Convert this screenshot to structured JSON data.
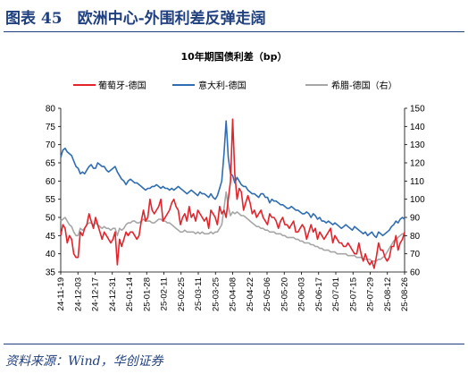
{
  "figure": {
    "title": "图表 45　欧洲中心-外围利差反弹走阔",
    "source": "资料来源：Wind，华创证券"
  },
  "colors": {
    "portugal": "#e3242b",
    "italy": "#2e6db4",
    "greece": "#a6a6a6",
    "frame": "#1f3f7f"
  },
  "chart_data": {
    "type": "line",
    "title": "10年期国债利差（bp）",
    "left_axis": {
      "ylim": [
        35,
        80
      ],
      "ticks": [
        35,
        40,
        45,
        50,
        55,
        60,
        65,
        70,
        75,
        80
      ]
    },
    "right_axis": {
      "ylim": [
        60,
        150
      ],
      "ticks": [
        60,
        70,
        80,
        90,
        100,
        110,
        120,
        130,
        140,
        150
      ]
    },
    "x_ticks": [
      "24-11-19",
      "24-12-03",
      "24-12-17",
      "24-12-31",
      "25-01-14",
      "25-01-28",
      "25-02-11",
      "25-02-25",
      "25-03-11",
      "25-03-25",
      "25-04-08",
      "25-04-22",
      "25-05-06",
      "25-05-20",
      "25-06-03",
      "25-06-17",
      "25-07-01",
      "25-07-15",
      "25-07-29",
      "25-08-12",
      "25-08-26"
    ],
    "legend_position": "top",
    "grid": false,
    "series": [
      {
        "name": "葡萄牙-德国",
        "axis": "left",
        "values": [
          45,
          48,
          47,
          43,
          45,
          44,
          40,
          39,
          39,
          46,
          45,
          47,
          48,
          51,
          49,
          47,
          50,
          48,
          46,
          44,
          46,
          45,
          44,
          43,
          44,
          46,
          37,
          44,
          42,
          44,
          46,
          45,
          46,
          46,
          45,
          44,
          45,
          49,
          52,
          49,
          50,
          55,
          52,
          51,
          52,
          53,
          55,
          49,
          50,
          51,
          52,
          54,
          55,
          53,
          52,
          48,
          50,
          51,
          49,
          53,
          50,
          51,
          49,
          52,
          51,
          50,
          49,
          50,
          47,
          52,
          51,
          50,
          48,
          53,
          51,
          52,
          50,
          55,
          60,
          77,
          62,
          55,
          58,
          57,
          52,
          54,
          56,
          54,
          51,
          52,
          50,
          51,
          52,
          50,
          49,
          48,
          51,
          50,
          50,
          49,
          47,
          49,
          50,
          48,
          48,
          47,
          48,
          49,
          46,
          46,
          47,
          48,
          47,
          44,
          46,
          48,
          46,
          47,
          44,
          46,
          45,
          44,
          45,
          46,
          47,
          43,
          45,
          44,
          43,
          43,
          42,
          42,
          43,
          42,
          41,
          40,
          40,
          43,
          40,
          38,
          40,
          38,
          37,
          38,
          36,
          39,
          43,
          41,
          41,
          39,
          38,
          39,
          42,
          42,
          45,
          41,
          43,
          44,
          46
        ]
      },
      {
        "name": "意大利-德国",
        "axis": "right",
        "values": [
          123,
          127,
          128,
          126,
          125,
          124,
          121,
          118,
          117,
          114,
          115,
          114,
          116,
          118,
          119,
          117,
          117,
          120,
          119,
          118,
          118,
          116,
          115,
          116,
          117,
          118,
          115,
          113,
          111,
          110,
          108,
          110,
          111,
          110,
          109,
          109,
          108,
          107,
          106,
          105,
          106,
          106,
          107,
          107,
          108,
          107,
          106,
          107,
          106,
          106,
          105,
          106,
          105,
          106,
          107,
          106,
          105,
          104,
          103,
          104,
          105,
          104,
          103,
          102,
          104,
          103,
          103,
          102,
          101,
          103,
          101,
          100,
          102,
          106,
          110,
          125,
          143,
          123,
          114,
          113,
          109,
          112,
          110,
          108,
          107,
          107,
          105,
          104,
          103,
          103,
          102,
          101,
          103,
          103,
          101,
          101,
          98,
          100,
          99,
          99,
          98,
          97,
          97,
          96,
          95,
          95,
          96,
          95,
          94,
          94,
          93,
          92,
          92,
          93,
          92,
          90,
          92,
          91,
          89,
          90,
          88,
          88,
          87,
          88,
          87,
          86,
          87,
          86,
          85,
          84,
          85,
          86,
          85,
          84,
          83,
          85,
          84,
          83,
          82,
          81,
          82,
          80,
          81,
          82,
          80,
          79,
          82,
          81,
          80,
          81,
          82,
          83,
          85,
          86,
          88,
          87,
          89,
          90,
          89
        ]
      },
      {
        "name": "希腊-德国（右）",
        "axis": "right",
        "values": [
          88,
          89,
          90,
          88,
          86,
          85,
          82,
          80,
          80,
          84,
          83,
          84,
          86,
          87,
          87,
          86,
          87,
          86,
          85,
          84,
          85,
          84,
          84,
          83,
          84,
          84,
          80,
          84,
          83,
          84,
          86,
          87,
          87,
          88,
          88,
          87,
          87,
          88,
          89,
          88,
          88,
          88,
          87,
          87,
          88,
          89,
          89,
          88,
          88,
          87,
          87,
          86,
          85,
          84,
          83,
          82,
          82,
          83,
          82,
          82,
          82,
          82,
          81,
          82,
          81,
          82,
          81,
          81,
          81,
          82,
          81,
          82,
          82,
          84,
          86,
          95,
          104,
          96,
          91,
          93,
          92,
          93,
          92,
          91,
          91,
          90,
          89,
          88,
          87,
          86,
          85,
          85,
          84,
          84,
          83,
          83,
          82,
          82,
          82,
          81,
          81,
          81,
          80,
          80,
          79,
          79,
          79,
          79,
          78,
          78,
          77,
          77,
          76,
          76,
          76,
          75,
          75,
          74,
          74,
          73,
          73,
          72,
          72,
          72,
          71,
          71,
          71,
          70,
          70,
          70,
          70,
          70,
          69,
          69,
          69,
          69,
          68,
          68,
          68,
          67,
          67,
          67,
          67,
          66,
          66,
          66,
          67,
          67,
          68,
          69,
          71,
          73,
          75,
          77,
          78,
          79,
          80,
          81,
          81
        ]
      }
    ]
  }
}
